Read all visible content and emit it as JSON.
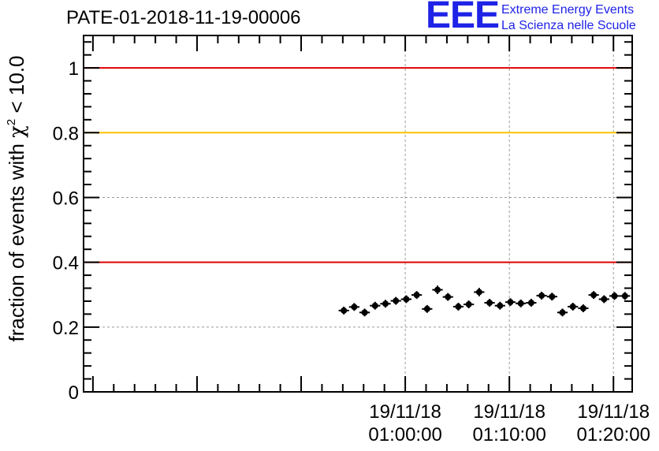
{
  "header": {
    "title": "PATE-01-2018-11-19-00006"
  },
  "logo": {
    "letters": "EEE",
    "line1": "Extreme Energy Events",
    "line2": "La Scienza nelle Scuole"
  },
  "colors": {
    "points": "#000000",
    "red_line": "#e00000",
    "yellow_line": "#ffc400",
    "grid": "#9a9a9a",
    "logo_blue": "#1f23e6"
  },
  "chart_data": {
    "type": "scatter",
    "title": "PATE-01-2018-11-19-00006",
    "ylabel_prefix": "fraction of events with ",
    "ylabel_chi": "χ",
    "ylabel_exp": "2",
    "ylabel_suffix": " < 10.0",
    "ylim": [
      0,
      1.1
    ],
    "xlim_minutes": [
      -30.9,
      21.8
    ],
    "y_ticks": [
      "0",
      "0.2",
      "0.4",
      "0.6",
      "0.8",
      "1"
    ],
    "y_tick_values": [
      0,
      0.2,
      0.4,
      0.6,
      0.8,
      1.0
    ],
    "x_ticks": [
      {
        "minute": 0,
        "date": "19/11/18",
        "time": "01:00:00"
      },
      {
        "minute": 10,
        "date": "19/11/18",
        "time": "01:10:00"
      },
      {
        "minute": 20,
        "date": "19/11/18",
        "time": "01:20:00"
      }
    ],
    "grid": true,
    "reference_lines": [
      {
        "y": 1.0,
        "color": "#e00000"
      },
      {
        "y": 0.8,
        "color": "#ffc400"
      },
      {
        "y": 0.4,
        "color": "#e00000"
      }
    ],
    "bin_width_minutes": 1.0,
    "x_minutes": [
      -5.9,
      -4.9,
      -3.9,
      -2.9,
      -1.9,
      -0.9,
      0.1,
      1.1,
      2.1,
      3.1,
      4.1,
      5.1,
      6.1,
      7.1,
      8.1,
      9.1,
      10.1,
      11.1,
      12.1,
      13.1,
      14.1,
      15.1,
      16.1,
      17.1,
      18.1,
      19.1,
      20.1,
      21.1
    ],
    "values": [
      0.251,
      0.262,
      0.245,
      0.266,
      0.272,
      0.281,
      0.286,
      0.299,
      0.256,
      0.315,
      0.293,
      0.263,
      0.27,
      0.308,
      0.275,
      0.266,
      0.277,
      0.273,
      0.275,
      0.297,
      0.294,
      0.245,
      0.263,
      0.258,
      0.299,
      0.286,
      0.296,
      0.296
    ],
    "errors": [
      0.012,
      0.012,
      0.012,
      0.012,
      0.012,
      0.012,
      0.012,
      0.012,
      0.012,
      0.013,
      0.012,
      0.012,
      0.012,
      0.013,
      0.012,
      0.012,
      0.012,
      0.012,
      0.012,
      0.012,
      0.012,
      0.012,
      0.012,
      0.012,
      0.012,
      0.012,
      0.012,
      0.012
    ]
  }
}
